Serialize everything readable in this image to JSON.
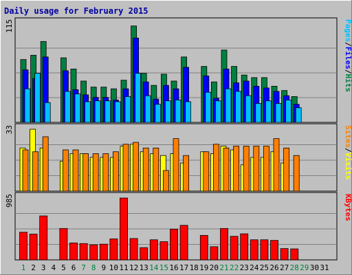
{
  "chart_data": {
    "type": "bar",
    "title": "Daily usage for February 2015",
    "colors": {
      "frame": "#c0c0c0",
      "plot": "#c0c0c0",
      "grid": "#808080",
      "hits": "#008040",
      "files": "#0000ff",
      "pages": "#00c0ff",
      "visits": "#ffff00",
      "sites": "#ff8000",
      "kbytes": "#ff0000",
      "weekday_label": "#000000",
      "weekend_label": "#008040",
      "title": "#0000a0"
    },
    "days": [
      "1",
      "2",
      "3",
      "4",
      "5",
      "6",
      "7",
      "8",
      "9",
      "10",
      "11",
      "12",
      "13",
      "14",
      "15",
      "16",
      "17",
      "18",
      "19",
      "20",
      "21",
      "22",
      "23",
      "24",
      "25",
      "26",
      "27",
      "28",
      "29",
      "30",
      "31"
    ],
    "weekend_days": [
      "1",
      "7",
      "8",
      "14",
      "15",
      "21",
      "22",
      "28",
      "29"
    ],
    "panels": [
      {
        "id": "hits",
        "max_label": "115",
        "max_value": 115,
        "labels": [
          {
            "text": "Pages",
            "color": "#00c0ff"
          },
          {
            "text": "/",
            "color": "#000000"
          },
          {
            "text": "Files",
            "color": "#0000ff"
          },
          {
            "text": "/",
            "color": "#000000"
          },
          {
            "text": "Hits",
            "color": "#008040"
          }
        ],
        "series": [
          {
            "key": "hits",
            "values": [
              73,
              78,
              94,
              0,
              75,
              62,
              48,
              41,
              41,
              39,
              49,
              112,
              57,
              43,
              56,
              48,
              76,
              0,
              65,
              47,
              84,
              65,
              55,
              52,
              52,
              42,
              37,
              30,
              0,
              0,
              0
            ]
          },
          {
            "key": "files",
            "values": [
              61,
              51,
              76,
              0,
              60,
              38,
              32,
              29,
              29,
              26,
              39,
              98,
              47,
              27,
              43,
              39,
              64,
              0,
              54,
              28,
              62,
              46,
              48,
              42,
              40,
              36,
              31,
              21,
              0,
              0,
              0
            ]
          },
          {
            "key": "pages",
            "values": [
              39,
              57,
              23,
              0,
              36,
              33,
              24,
              25,
              25,
              24,
              30,
              57,
              31,
              21,
              25,
              26,
              24,
              0,
              35,
              25,
              39,
              36,
              31,
              22,
              25,
              22,
              26,
              17,
              0,
              0,
              0
            ]
          }
        ]
      },
      {
        "id": "visits",
        "max_label": "33",
        "max_value": 33,
        "labels": [
          {
            "text": "Sites",
            "color": "#ff8000"
          },
          {
            "text": "/",
            "color": "#000000"
          },
          {
            "text": "Visits",
            "color": "#ffff00"
          }
        ],
        "series": [
          {
            "key": "visits",
            "values": [
              23,
              33,
              23,
              0,
              16,
              20,
              20,
              18,
              18,
              18,
              24,
              25,
              21,
              20,
              19,
              20,
              15,
              0,
              21,
              20,
              24,
              22,
              14,
              18,
              18,
              21,
              15,
              0,
              0,
              0,
              0
            ]
          },
          {
            "key": "sites",
            "values": [
              22,
              21,
              29,
              0,
              22,
              22,
              20,
              20,
              20,
              21,
              25,
              26,
              23,
              23,
              11,
              28,
              19,
              0,
              21,
              25,
              23,
              24,
              24,
              24,
              24,
              28,
              23,
              19,
              0,
              0,
              0
            ]
          }
        ]
      },
      {
        "id": "kbytes",
        "max_label": "985",
        "max_value": 985,
        "labels": [
          {
            "text": "KBytes",
            "color": "#ff0000"
          }
        ],
        "series": [
          {
            "key": "kbytes",
            "values": [
              440,
              410,
              700,
              0,
              500,
              270,
              260,
              240,
              250,
              335,
              985,
              340,
              195,
              320,
              290,
              490,
              550,
              0,
              390,
              210,
              500,
              375,
              415,
              320,
              320,
              310,
              180,
              175,
              0,
              0,
              0
            ]
          }
        ]
      }
    ]
  }
}
